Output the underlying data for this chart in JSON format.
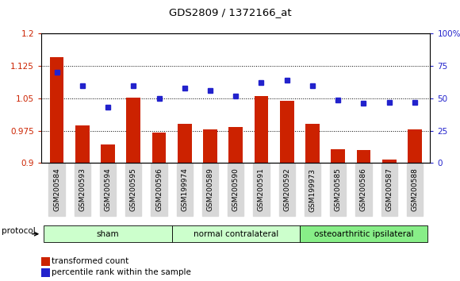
{
  "title": "GDS2809 / 1372166_at",
  "categories": [
    "GSM200584",
    "GSM200593",
    "GSM200594",
    "GSM200595",
    "GSM200596",
    "GSM199974",
    "GSM200589",
    "GSM200590",
    "GSM200591",
    "GSM200592",
    "GSM199973",
    "GSM200585",
    "GSM200586",
    "GSM200587",
    "GSM200588"
  ],
  "bar_values": [
    1.145,
    0.988,
    0.943,
    1.052,
    0.97,
    0.99,
    0.978,
    0.983,
    1.055,
    1.044,
    0.99,
    0.932,
    0.93,
    0.908,
    0.978
  ],
  "dot_values": [
    70,
    60,
    43,
    60,
    50,
    58,
    56,
    52,
    62,
    64,
    60,
    49,
    46,
    47,
    47
  ],
  "bar_color": "#cc2200",
  "dot_color": "#2222cc",
  "ylim_left": [
    0.9,
    1.2
  ],
  "ylim_right": [
    0,
    100
  ],
  "yticks_left": [
    0.9,
    0.975,
    1.05,
    1.125,
    1.2
  ],
  "yticks_right": [
    0,
    25,
    50,
    75,
    100
  ],
  "ytick_labels_left": [
    "0.9",
    "0.975",
    "1.05",
    "1.125",
    "1.2"
  ],
  "ytick_labels_right": [
    "0",
    "25",
    "50",
    "75",
    "100%"
  ],
  "group_labels": [
    "sham",
    "normal contralateral",
    "osteoarthritic ipsilateral"
  ],
  "group_starts": [
    0,
    5,
    10
  ],
  "group_ends": [
    5,
    10,
    15
  ],
  "group_colors": [
    "#ccffcc",
    "#ccffcc",
    "#88ee88"
  ],
  "protocol_label": "protocol",
  "legend_bar_label": "transformed count",
  "legend_dot_label": "percentile rank within the sample",
  "hgrid_values": [
    0.975,
    1.05,
    1.125
  ]
}
